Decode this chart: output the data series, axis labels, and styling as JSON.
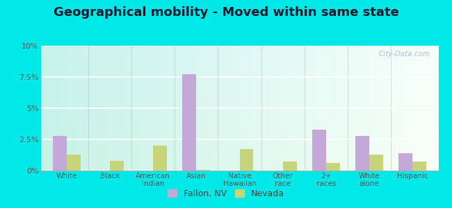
{
  "title": "Geographical mobility - Moved within same state",
  "categories": [
    "White",
    "Black",
    "American\nIndian",
    "Asian",
    "Native\nHawaiian",
    "Other\nrace",
    "2+\nraces",
    "White\nalone",
    "Hispanic"
  ],
  "fallon_values": [
    2.8,
    0.0,
    0.0,
    7.7,
    0.0,
    0.0,
    3.3,
    2.8,
    1.4
  ],
  "nevada_values": [
    1.3,
    0.8,
    2.0,
    0.05,
    1.7,
    0.7,
    0.6,
    1.3,
    0.7
  ],
  "fallon_color": "#c4a8d8",
  "nevada_color": "#c8d47a",
  "ylim": [
    0,
    10
  ],
  "yticks": [
    0,
    2.5,
    5.0,
    7.5,
    10.0
  ],
  "ytick_labels": [
    "0%",
    "2.5%",
    "5%",
    "7.5%",
    "10%"
  ],
  "outer_bg": "#00e8e8",
  "bar_width": 0.32,
  "title_fontsize": 13,
  "legend_fallon": "Fallon, NV",
  "legend_nevada": "Nevada"
}
